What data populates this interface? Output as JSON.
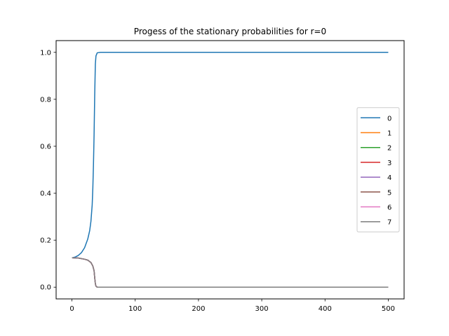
{
  "chart_data": {
    "type": "line",
    "title": "Progess of the stationary probabilities for r=0",
    "xlabel": "",
    "ylabel": "",
    "xlim": [
      -25,
      525
    ],
    "ylim": [
      -0.05,
      1.05
    ],
    "xticks": [
      0,
      100,
      200,
      300,
      400,
      500
    ],
    "yticks": [
      0.0,
      0.2,
      0.4,
      0.6,
      0.8,
      1.0
    ],
    "ytick_labels": [
      "0.0",
      "0.2",
      "0.4",
      "0.6",
      "0.8",
      "1.0"
    ],
    "grid": false,
    "legend_position": "center-right",
    "series": [
      {
        "name": "0",
        "color": "#1f77b4",
        "x": [
          0,
          5,
          10,
          15,
          20,
          25,
          28,
          30,
          32,
          33,
          34,
          35,
          36,
          37,
          38,
          40,
          45,
          50,
          100,
          200,
          300,
          400,
          500
        ],
        "y": [
          0.125,
          0.128,
          0.135,
          0.147,
          0.168,
          0.205,
          0.24,
          0.28,
          0.35,
          0.42,
          0.52,
          0.65,
          0.82,
          0.95,
          0.985,
          0.998,
          1.0,
          1.0,
          1.0,
          1.0,
          1.0,
          1.0,
          1.0
        ]
      },
      {
        "name": "1",
        "color": "#ff7f0e",
        "x": [
          0,
          10,
          20,
          25,
          30,
          33,
          35,
          36,
          37,
          38,
          40,
          50,
          100,
          200,
          300,
          400,
          500
        ],
        "y": [
          0.125,
          0.124,
          0.119,
          0.115,
          0.105,
          0.09,
          0.07,
          0.04,
          0.015,
          0.004,
          0.0,
          0.0,
          0.0,
          0.0,
          0.0,
          0.0,
          0.0
        ]
      },
      {
        "name": "2",
        "color": "#2ca02c",
        "x": [
          0,
          10,
          20,
          25,
          30,
          33,
          35,
          36,
          37,
          38,
          40,
          50,
          100,
          200,
          300,
          400,
          500
        ],
        "y": [
          0.125,
          0.124,
          0.119,
          0.115,
          0.105,
          0.09,
          0.07,
          0.04,
          0.015,
          0.004,
          0.0,
          0.0,
          0.0,
          0.0,
          0.0,
          0.0,
          0.0
        ]
      },
      {
        "name": "3",
        "color": "#d62728",
        "x": [
          0,
          10,
          20,
          25,
          30,
          33,
          35,
          36,
          37,
          38,
          40,
          50,
          100,
          200,
          300,
          400,
          500
        ],
        "y": [
          0.125,
          0.124,
          0.119,
          0.115,
          0.105,
          0.09,
          0.07,
          0.04,
          0.015,
          0.004,
          0.0,
          0.0,
          0.0,
          0.0,
          0.0,
          0.0,
          0.0
        ]
      },
      {
        "name": "4",
        "color": "#9467bd",
        "x": [
          0,
          10,
          20,
          25,
          30,
          33,
          35,
          36,
          37,
          38,
          40,
          50,
          100,
          200,
          300,
          400,
          500
        ],
        "y": [
          0.125,
          0.124,
          0.119,
          0.115,
          0.105,
          0.09,
          0.07,
          0.04,
          0.015,
          0.004,
          0.0,
          0.0,
          0.0,
          0.0,
          0.0,
          0.0,
          0.0
        ]
      },
      {
        "name": "5",
        "color": "#8c564b",
        "x": [
          0,
          10,
          20,
          25,
          30,
          33,
          35,
          36,
          37,
          38,
          40,
          50,
          100,
          200,
          300,
          400,
          500
        ],
        "y": [
          0.125,
          0.124,
          0.119,
          0.115,
          0.105,
          0.09,
          0.07,
          0.04,
          0.015,
          0.004,
          0.0,
          0.0,
          0.0,
          0.0,
          0.0,
          0.0,
          0.0
        ]
      },
      {
        "name": "6",
        "color": "#e377c2",
        "x": [
          0,
          10,
          20,
          25,
          30,
          33,
          35,
          36,
          37,
          38,
          40,
          50,
          100,
          200,
          300,
          400,
          500
        ],
        "y": [
          0.125,
          0.124,
          0.119,
          0.115,
          0.105,
          0.09,
          0.07,
          0.04,
          0.015,
          0.004,
          0.0,
          0.0,
          0.0,
          0.0,
          0.0,
          0.0,
          0.0
        ]
      },
      {
        "name": "7",
        "color": "#7f7f7f",
        "x": [
          0,
          10,
          20,
          25,
          30,
          33,
          35,
          36,
          37,
          38,
          40,
          50,
          100,
          200,
          300,
          400,
          500
        ],
        "y": [
          0.125,
          0.124,
          0.119,
          0.115,
          0.105,
          0.09,
          0.07,
          0.04,
          0.015,
          0.004,
          0.0,
          0.0,
          0.0,
          0.0,
          0.0,
          0.0,
          0.0
        ]
      }
    ]
  }
}
